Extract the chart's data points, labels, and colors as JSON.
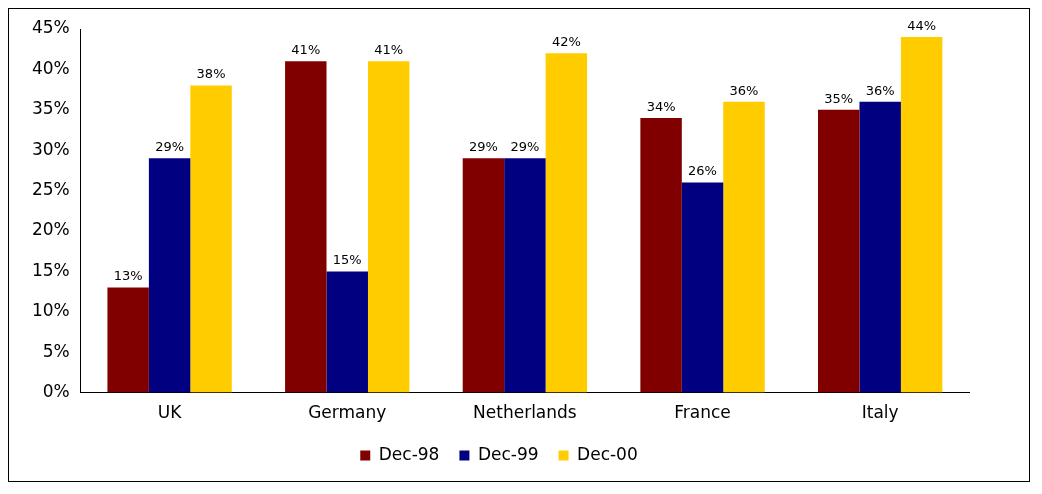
{
  "chart_data": {
    "type": "bar",
    "categories": [
      "UK",
      "Germany",
      "Netherlands",
      "France",
      "Italy"
    ],
    "series": [
      {
        "name": "Dec-98",
        "color": "#800000",
        "values": [
          13,
          41,
          29,
          34,
          35
        ],
        "value_labels": [
          "13%",
          "41%",
          "29%",
          "34%",
          "35%"
        ]
      },
      {
        "name": "Dec-99",
        "color": "#000080",
        "values": [
          29,
          15,
          29,
          26,
          36
        ],
        "value_labels": [
          "29%",
          "15%",
          "29%",
          "26%",
          "36%"
        ]
      },
      {
        "name": "Dec-00",
        "color": "#ffcc00",
        "values": [
          38,
          41,
          42,
          36,
          44
        ],
        "value_labels": [
          "38%",
          "41%",
          "42%",
          "36%",
          "44%"
        ]
      }
    ],
    "ylim": [
      0,
      45
    ],
    "yticks": [
      {
        "value": 0,
        "label": "0%"
      },
      {
        "value": 5,
        "label": "5%"
      },
      {
        "value": 10,
        "label": "10%"
      },
      {
        "value": 15,
        "label": "15%"
      },
      {
        "value": 20,
        "label": "20%"
      },
      {
        "value": 25,
        "label": "25%"
      },
      {
        "value": 30,
        "label": "30%"
      },
      {
        "value": 35,
        "label": "35%"
      },
      {
        "value": 40,
        "label": "40%"
      },
      {
        "value": 45,
        "label": "45%"
      }
    ],
    "grid": false,
    "legend": "bottom"
  }
}
